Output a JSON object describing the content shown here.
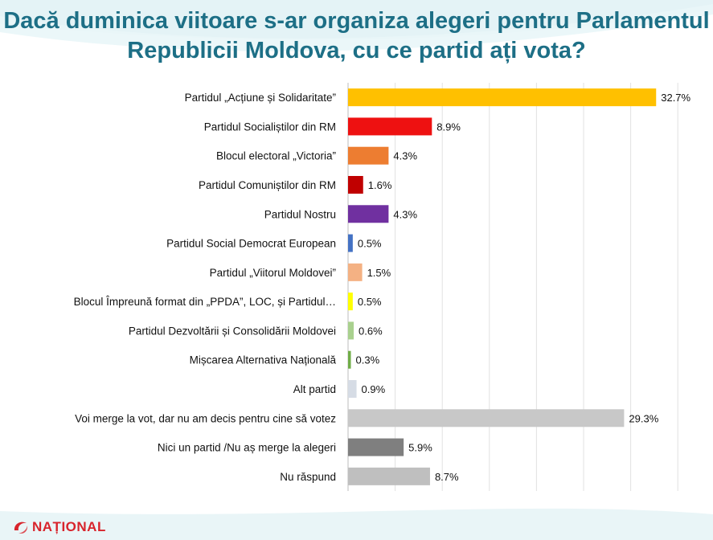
{
  "title": "Dacă duminica viitoare s-ar organiza alegeri pentru Parlamentul Republicii Moldova, cu ce partid ați vota?",
  "logo_text": "NAȚIONAL",
  "colors": {
    "title": "#1d6f86",
    "logo": "#d8242c"
  },
  "chart_data": {
    "type": "bar",
    "orientation": "horizontal",
    "categories": [
      "Partidul „Acțiune și Solidaritate”",
      "Partidul Socialiștilor din RM",
      "Blocul electoral „Victoria”",
      "Partidul Comuniștilor din RM",
      "Partidul Nostru",
      "Partidul Social Democrat European",
      "Partidul „Viitorul Moldovei”",
      "Blocul Împreună format din „PPDA”, LOC, și Partidul…",
      "Partidul Dezvoltării și Consolidării Moldovei",
      "Mișcarea Alternativa Națională",
      "Alt partid",
      "Voi merge la vot, dar nu am decis pentru cine să votez",
      "Nici un partid /Nu aș merge la alegeri",
      "Nu răspund"
    ],
    "values": [
      32.7,
      8.9,
      4.3,
      1.6,
      4.3,
      0.5,
      1.5,
      0.5,
      0.6,
      0.3,
      0.9,
      29.3,
      5.9,
      8.7
    ],
    "value_labels": [
      "32.7%",
      "8.9%",
      "4.3%",
      "1.6%",
      "4.3%",
      "0.5%",
      "1.5%",
      "0.5%",
      "0.6%",
      "0.3%",
      "0.9%",
      "29.3%",
      "5.9%",
      "8.7%"
    ],
    "bar_colors": [
      "#ffc000",
      "#ee1111",
      "#ed7d31",
      "#c00000",
      "#7030a0",
      "#4472c4",
      "#f4b183",
      "#ffff00",
      "#a9d18e",
      "#70ad47",
      "#d6dce5",
      "#c8c8c8",
      "#7f7f7f",
      "#bfbfbf"
    ],
    "xlim": [
      0,
      35
    ],
    "grid": true
  }
}
